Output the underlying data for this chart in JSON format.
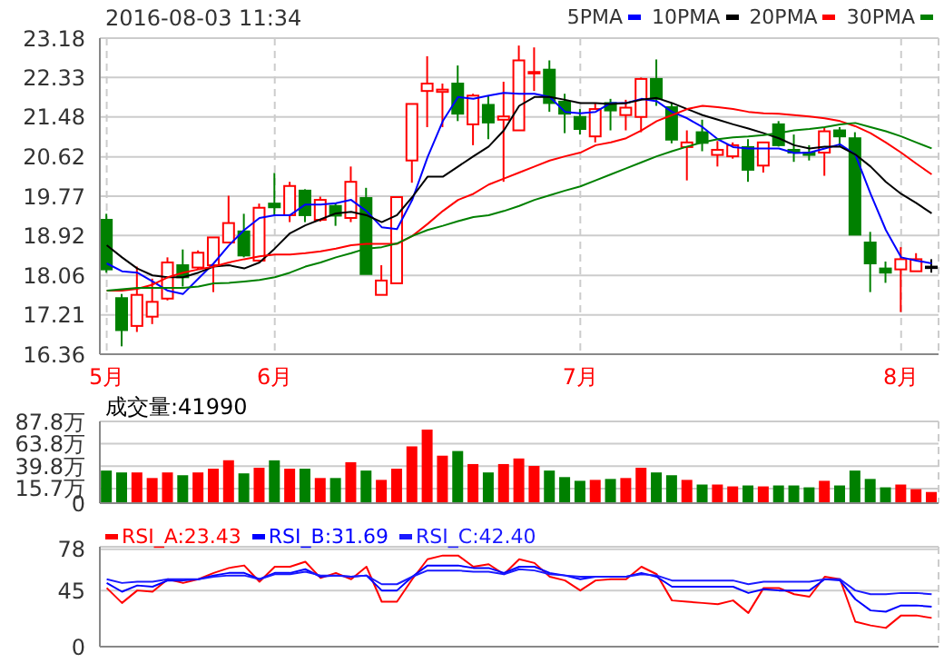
{
  "chart_data": [
    {
      "type": "candlestick",
      "title": "2016-08-03 11:34",
      "categories": [
        "5月",
        null,
        null,
        null,
        null,
        null,
        null,
        null,
        null,
        null,
        null,
        "6月",
        null,
        null,
        null,
        null,
        null,
        null,
        null,
        null,
        null,
        null,
        null,
        null,
        null,
        null,
        null,
        null,
        null,
        null,
        null,
        "7月",
        null,
        null,
        null,
        null,
        null,
        null,
        null,
        null,
        null,
        null,
        null,
        null,
        null,
        null,
        null,
        null,
        null,
        null,
        null,
        null,
        "8月",
        null,
        null
      ],
      "ohlc": [
        [
          19.26,
          19.39,
          18.12,
          18.19
        ],
        [
          17.57,
          17.66,
          16.53,
          16.88
        ],
        [
          16.97,
          18.25,
          16.84,
          17.64
        ],
        [
          17.17,
          17.99,
          17.01,
          17.49
        ],
        [
          17.56,
          18.45,
          17.52,
          18.34
        ],
        [
          18.28,
          18.62,
          17.82,
          18.02
        ],
        [
          18.23,
          18.6,
          18.19,
          18.55
        ],
        [
          18.28,
          18.88,
          17.7,
          18.88
        ],
        [
          18.77,
          19.78,
          18.75,
          19.19
        ],
        [
          19.01,
          19.39,
          18.45,
          18.49
        ],
        [
          18.38,
          19.61,
          18.36,
          19.52
        ],
        [
          19.61,
          20.27,
          19.34,
          19.53
        ],
        [
          19.36,
          20.08,
          19.21,
          19.99
        ],
        [
          19.89,
          19.92,
          19.21,
          19.36
        ],
        [
          19.26,
          19.76,
          19.22,
          19.69
        ],
        [
          19.56,
          19.62,
          19.13,
          19.35
        ],
        [
          19.3,
          20.41,
          19.21,
          20.08
        ],
        [
          19.73,
          19.95,
          18.09,
          18.09
        ],
        [
          17.64,
          18.28,
          17.64,
          17.95
        ],
        [
          17.89,
          19.75,
          17.89,
          19.75
        ],
        [
          20.54,
          21.76,
          20.06,
          21.76
        ],
        [
          22.04,
          22.79,
          21.26,
          22.2
        ],
        [
          22.02,
          22.2,
          21.26,
          22.07
        ],
        [
          22.2,
          22.59,
          21.39,
          21.55
        ],
        [
          21.32,
          21.98,
          20.87,
          21.94
        ],
        [
          21.74,
          21.94,
          21.0,
          21.36
        ],
        [
          21.42,
          22.24,
          20.08,
          21.49
        ],
        [
          21.19,
          23.02,
          21.19,
          22.7
        ],
        [
          22.42,
          22.98,
          22.04,
          22.45
        ],
        [
          22.5,
          22.7,
          21.59,
          21.78
        ],
        [
          21.81,
          21.98,
          21.13,
          21.55
        ],
        [
          21.48,
          21.65,
          21.1,
          21.22
        ],
        [
          21.06,
          21.78,
          20.93,
          21.65
        ],
        [
          21.78,
          21.87,
          21.19,
          21.62
        ],
        [
          21.52,
          21.85,
          21.19,
          21.68
        ],
        [
          21.48,
          22.33,
          21.15,
          22.3
        ],
        [
          22.3,
          22.72,
          21.72,
          21.87
        ],
        [
          21.69,
          21.78,
          20.91,
          20.99
        ],
        [
          20.83,
          21.19,
          20.11,
          20.93
        ],
        [
          21.15,
          21.42,
          20.74,
          20.92
        ],
        [
          20.66,
          20.96,
          20.41,
          20.77
        ],
        [
          20.63,
          20.93,
          20.58,
          20.87
        ],
        [
          20.83,
          21.0,
          20.08,
          20.34
        ],
        [
          20.43,
          20.93,
          20.28,
          20.93
        ],
        [
          21.32,
          21.39,
          20.84,
          20.87
        ],
        [
          20.77,
          21.1,
          20.51,
          20.71
        ],
        [
          20.71,
          20.87,
          20.54,
          20.66
        ],
        [
          20.71,
          21.26,
          20.21,
          21.17
        ],
        [
          21.19,
          21.26,
          20.84,
          21.06
        ],
        [
          21.02,
          21.15,
          18.94,
          18.94
        ],
        [
          18.77,
          19.0,
          17.7,
          18.32
        ],
        [
          18.21,
          18.36,
          17.9,
          18.12
        ],
        [
          18.19,
          18.67,
          17.27,
          18.41
        ],
        [
          18.15,
          18.54,
          18.15,
          18.41
        ],
        [
          18.25,
          18.41,
          18.12,
          18.25
        ]
      ],
      "colors": [
        "#008000",
        "#008000",
        "#ff0000",
        "#ff0000",
        "#ff0000",
        "#008000",
        "#ff0000",
        "#ff0000",
        "#ff0000",
        "#008000",
        "#ff0000",
        "#008000",
        "#ff0000",
        "#008000",
        "#ff0000",
        "#008000",
        "#ff0000",
        "#008000",
        "#ff0000",
        "#ff0000",
        "#ff0000",
        "#ff0000",
        "#ff0000",
        "#008000",
        "#ff0000",
        "#008000",
        "#ff0000",
        "#ff0000",
        "#ff0000",
        "#008000",
        "#008000",
        "#008000",
        "#ff0000",
        "#008000",
        "#ff0000",
        "#ff0000",
        "#008000",
        "#008000",
        "#ff0000",
        "#008000",
        "#ff0000",
        "#ff0000",
        "#008000",
        "#ff0000",
        "#008000",
        "#008000",
        "#008000",
        "#ff0000",
        "#008000",
        "#008000",
        "#008000",
        "#008000",
        "#ff0000",
        "#ff0000",
        "#000000"
      ],
      "series": [
        {
          "name": "5PMA",
          "type": "line",
          "color": "#0000ff",
          "values": [
            18.32,
            18.15,
            18.12,
            17.93,
            17.73,
            17.66,
            17.99,
            18.32,
            18.71,
            19.04,
            19.3,
            19.36,
            19.36,
            19.59,
            19.59,
            19.62,
            19.69,
            19.45,
            19.1,
            19.06,
            19.69,
            20.61,
            21.39,
            21.91,
            21.87,
            21.94,
            22.0,
            21.98,
            21.98,
            21.91,
            21.59,
            21.56,
            21.59,
            21.78,
            21.78,
            21.87,
            21.82,
            21.59,
            21.45,
            21.26,
            21.0,
            20.83,
            20.8,
            20.8,
            20.8,
            20.7,
            20.71,
            20.8,
            20.89,
            20.67,
            19.82,
            19.04,
            18.45,
            18.38,
            18.32
          ]
        },
        {
          "name": "10PMA",
          "type": "line",
          "color": "#000000",
          "values": [
            18.71,
            18.45,
            18.21,
            18.06,
            18.02,
            18.02,
            18.12,
            18.25,
            18.28,
            18.21,
            18.34,
            18.64,
            18.97,
            19.14,
            19.27,
            19.4,
            19.43,
            19.36,
            19.21,
            19.36,
            19.75,
            20.19,
            20.19,
            20.41,
            20.63,
            20.84,
            21.19,
            21.72,
            21.91,
            21.91,
            21.85,
            21.78,
            21.78,
            21.76,
            21.78,
            21.85,
            21.89,
            21.78,
            21.65,
            21.52,
            21.42,
            21.32,
            21.23,
            21.13,
            21.02,
            20.87,
            20.8,
            20.84,
            20.84,
            20.67,
            20.41,
            20.08,
            19.82,
            19.62,
            19.4
          ]
        },
        {
          "name": "20PMA",
          "type": "line",
          "color": "#ff0000",
          "values": [
            17.73,
            17.73,
            17.77,
            17.86,
            18.02,
            18.12,
            18.19,
            18.25,
            18.34,
            18.41,
            18.47,
            18.51,
            18.51,
            18.54,
            18.58,
            18.64,
            18.71,
            18.74,
            18.74,
            18.74,
            18.91,
            19.17,
            19.45,
            19.69,
            19.82,
            20.02,
            20.15,
            20.28,
            20.41,
            20.54,
            20.63,
            20.71,
            20.87,
            20.93,
            21.02,
            21.19,
            21.39,
            21.52,
            21.65,
            21.72,
            21.69,
            21.65,
            21.59,
            21.56,
            21.55,
            21.52,
            21.49,
            21.45,
            21.39,
            21.28,
            21.13,
            20.93,
            20.71,
            20.47,
            20.24
          ]
        },
        {
          "name": "30PMA",
          "type": "line",
          "color": "#008000",
          "values": [
            17.73,
            17.76,
            17.79,
            17.79,
            17.79,
            17.79,
            17.82,
            17.89,
            17.9,
            17.93,
            17.96,
            18.02,
            18.12,
            18.25,
            18.34,
            18.45,
            18.54,
            18.64,
            18.67,
            18.75,
            18.91,
            19.04,
            19.13,
            19.23,
            19.32,
            19.36,
            19.45,
            19.56,
            19.69,
            19.79,
            19.89,
            19.98,
            20.11,
            20.24,
            20.37,
            20.5,
            20.63,
            20.74,
            20.84,
            20.93,
            21.0,
            21.04,
            21.06,
            21.09,
            21.13,
            21.19,
            21.22,
            21.26,
            21.32,
            21.35,
            21.26,
            21.17,
            21.06,
            20.93,
            20.8
          ]
        }
      ],
      "ylim": [
        16.36,
        23.18
      ],
      "yticks": [
        16.36,
        17.21,
        18.06,
        18.92,
        19.77,
        20.62,
        21.48,
        22.33,
        23.18
      ],
      "grid": true,
      "legend": "top right"
    },
    {
      "type": "bar",
      "annotations": [
        "成交量:41990"
      ],
      "categories": [
        null,
        null,
        null,
        null,
        null,
        null,
        null,
        null,
        null,
        null,
        null,
        null,
        null,
        null,
        null,
        null,
        null,
        null,
        null,
        null,
        null,
        null,
        null,
        null,
        null,
        null,
        null,
        null,
        null,
        null,
        null,
        null,
        null,
        null,
        null,
        null,
        null,
        null,
        null,
        null,
        null,
        null,
        null,
        null,
        null,
        null,
        null,
        null,
        null,
        null,
        null,
        null,
        null,
        null,
        null
      ],
      "values": [
        35,
        33,
        33,
        27,
        33,
        30,
        33,
        37,
        46,
        32,
        38,
        46,
        37,
        37,
        27,
        27,
        44,
        35,
        25,
        37,
        61,
        79,
        51,
        56,
        42,
        33,
        42,
        48,
        40,
        35,
        28,
        24,
        25,
        26,
        27,
        38,
        33,
        30,
        25,
        20,
        20,
        18,
        19,
        18,
        19,
        19,
        17,
        24,
        19,
        35,
        26,
        17,
        20,
        15,
        12
      ],
      "colors": [
        "#008000",
        "#008000",
        "#ff0000",
        "#ff0000",
        "#ff0000",
        "#008000",
        "#ff0000",
        "#ff0000",
        "#ff0000",
        "#008000",
        "#ff0000",
        "#008000",
        "#ff0000",
        "#008000",
        "#ff0000",
        "#008000",
        "#ff0000",
        "#008000",
        "#ff0000",
        "#ff0000",
        "#ff0000",
        "#ff0000",
        "#ff0000",
        "#008000",
        "#ff0000",
        "#008000",
        "#ff0000",
        "#ff0000",
        "#ff0000",
        "#008000",
        "#008000",
        "#008000",
        "#ff0000",
        "#008000",
        "#ff0000",
        "#ff0000",
        "#008000",
        "#008000",
        "#ff0000",
        "#008000",
        "#ff0000",
        "#ff0000",
        "#008000",
        "#ff0000",
        "#008000",
        "#008000",
        "#008000",
        "#ff0000",
        "#008000",
        "#008000",
        "#008000",
        "#008000",
        "#ff0000",
        "#ff0000",
        "#ff0000"
      ],
      "ylim": [
        0,
        87.8
      ],
      "yticks": [
        0,
        {
          "value": 15.7,
          "label": "15.7万"
        },
        {
          "value": 39.8,
          "label": "39.8万"
        },
        {
          "value": 63.8,
          "label": "63.8万"
        },
        {
          "value": 87.8,
          "label": "87.8万"
        }
      ],
      "grid": true,
      "tick_labels": "y"
    },
    {
      "type": "line",
      "categories": [
        null,
        null,
        null,
        null,
        null,
        null,
        null,
        null,
        null,
        null,
        null,
        null,
        null,
        null,
        null,
        null,
        null,
        null,
        null,
        null,
        null,
        null,
        null,
        null,
        null,
        null,
        null,
        null,
        null,
        null,
        null,
        null,
        null,
        null,
        null,
        null,
        null,
        null,
        null,
        null,
        null,
        null,
        null,
        null,
        null,
        null,
        null,
        null,
        null,
        null,
        null,
        null,
        null,
        null,
        null
      ],
      "series": [
        {
          "name": "RSI_A:23.43",
          "color": "#ff0000",
          "values": [
            47,
            35,
            45,
            44,
            54,
            51,
            54,
            59,
            63,
            65,
            52,
            64,
            64,
            68,
            55,
            59,
            54,
            64,
            36,
            36,
            54,
            70,
            73,
            73,
            64,
            66,
            58,
            70,
            67,
            56,
            53,
            45,
            53,
            54,
            54,
            64,
            58,
            37,
            36,
            35,
            34,
            37,
            27,
            47,
            47,
            42,
            40,
            56,
            54,
            20,
            17,
            15,
            25,
            25,
            23
          ]
        },
        {
          "name": "RSI_B:31.69",
          "color": "#0000ff",
          "values": [
            51,
            44,
            49,
            48,
            53,
            53,
            54,
            57,
            59,
            59,
            54,
            59,
            59,
            62,
            56,
            57,
            56,
            57,
            45,
            45,
            56,
            65,
            65,
            65,
            63,
            63,
            59,
            64,
            64,
            59,
            57,
            54,
            56,
            56,
            56,
            59,
            56,
            48,
            48,
            48,
            48,
            48,
            43,
            46,
            45,
            45,
            45,
            54,
            53,
            38,
            29,
            28,
            33,
            33,
            32
          ]
        },
        {
          "name": "RSI_C:42.40",
          "color": "#1a1aff",
          "values": [
            54,
            51,
            52,
            52,
            54,
            54,
            54,
            56,
            57,
            57,
            54,
            58,
            58,
            60,
            57,
            57,
            56,
            57,
            50,
            50,
            56,
            61,
            61,
            61,
            60,
            60,
            58,
            62,
            61,
            58,
            57,
            56,
            56,
            56,
            56,
            58,
            57,
            53,
            53,
            53,
            53,
            53,
            50,
            52,
            52,
            52,
            52,
            54,
            54,
            45,
            42,
            42,
            43,
            43,
            42
          ]
        }
      ],
      "ylim": [
        0,
        80
      ],
      "yticks": [
        0,
        45,
        78
      ],
      "grid": true,
      "legend": "top left",
      "tick_labels": "y"
    }
  ]
}
